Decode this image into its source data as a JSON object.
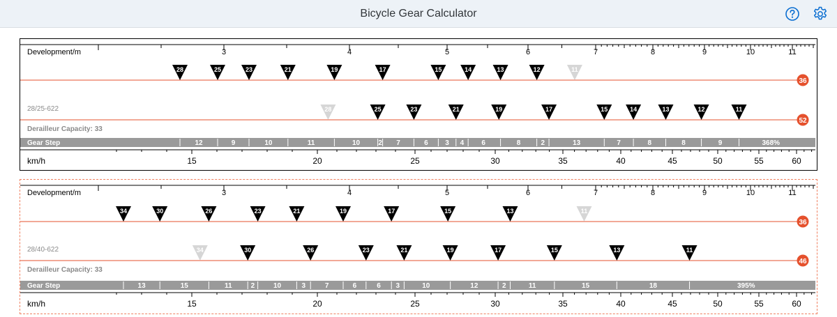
{
  "app": {
    "title": "Bicycle Gear Calculator"
  },
  "header": {
    "help_icon": "help-icon",
    "settings_icon": "settings-icon"
  },
  "colors": {
    "accent": "#e5512d",
    "line": "#e5512d",
    "gear_bar": "#9a9a9a",
    "ghost": "#d6d6d6",
    "border_dashed": "#f5b8a8"
  },
  "panels": [
    {
      "id": "panel-1",
      "dev_label": "Development/m",
      "dev_ticks": [
        "3",
        "4",
        "5",
        "6",
        "7",
        "8",
        "9",
        "10",
        "11"
      ],
      "setup_label": "28/25-622",
      "capacity_label": "Derailleur Capacity: 33",
      "gear_step_label": "Gear Step",
      "speed_label": "km/h",
      "speed_ticks": [
        "15",
        "20",
        "25",
        "30",
        "35",
        "40",
        "45",
        "50",
        "55",
        "60"
      ],
      "chainrings": [
        "36",
        "52"
      ],
      "ring1_cogs": [
        {
          "label": "28",
          "dev": 2.65,
          "ghost": false
        },
        {
          "label": "25",
          "dev": 2.95,
          "ghost": false
        },
        {
          "label": "23",
          "dev": 3.2,
          "ghost": false
        },
        {
          "label": "21",
          "dev": 3.51,
          "ghost": false
        },
        {
          "label": "19",
          "dev": 3.88,
          "ghost": false
        },
        {
          "label": "17",
          "dev": 4.34,
          "ghost": false
        },
        {
          "label": "15",
          "dev": 4.91,
          "ghost": false
        },
        {
          "label": "14",
          "dev": 5.26,
          "ghost": false
        },
        {
          "label": "13",
          "dev": 5.66,
          "ghost": false
        },
        {
          "label": "12",
          "dev": 6.13,
          "ghost": false
        },
        {
          "label": "11",
          "dev": 6.69,
          "ghost": true
        }
      ],
      "ring2_cogs": [
        {
          "label": "28",
          "dev": 3.83,
          "ghost": true
        },
        {
          "label": "25",
          "dev": 4.29,
          "ghost": false
        },
        {
          "label": "23",
          "dev": 4.66,
          "ghost": false
        },
        {
          "label": "21",
          "dev": 5.11,
          "ghost": false
        },
        {
          "label": "19",
          "dev": 5.64,
          "ghost": false
        },
        {
          "label": "17",
          "dev": 6.31,
          "ghost": false
        },
        {
          "label": "15",
          "dev": 7.15,
          "ghost": false
        },
        {
          "label": "14",
          "dev": 7.66,
          "ghost": false
        },
        {
          "label": "13",
          "dev": 8.25,
          "ghost": false
        },
        {
          "label": "12",
          "dev": 8.94,
          "ghost": false
        },
        {
          "label": "11",
          "dev": 9.75,
          "ghost": false
        }
      ],
      "gear_steps": [
        {
          "label": "12",
          "from": 2.65,
          "to": 2.95
        },
        {
          "label": "9",
          "from": 2.95,
          "to": 3.2
        },
        {
          "label": "10",
          "from": 3.2,
          "to": 3.51
        },
        {
          "label": "11",
          "from": 3.51,
          "to": 3.88
        },
        {
          "label": "10",
          "from": 3.88,
          "to": 4.29
        },
        {
          "label": "2",
          "from": 4.29,
          "to": 4.34
        },
        {
          "label": "7",
          "from": 4.34,
          "to": 4.66
        },
        {
          "label": "6",
          "from": 4.66,
          "to": 4.91
        },
        {
          "label": "3",
          "from": 4.91,
          "to": 5.11
        },
        {
          "label": "4",
          "from": 5.11,
          "to": 5.26
        },
        {
          "label": "6",
          "from": 5.26,
          "to": 5.64
        },
        {
          "label": "8",
          "from": 5.66,
          "to": 6.13
        },
        {
          "label": "2",
          "from": 6.13,
          "to": 6.31
        },
        {
          "label": "13",
          "from": 6.31,
          "to": 7.15
        },
        {
          "label": "7",
          "from": 7.15,
          "to": 7.66
        },
        {
          "label": "8",
          "from": 7.66,
          "to": 8.25
        },
        {
          "label": "8",
          "from": 8.25,
          "to": 8.94
        },
        {
          "label": "9",
          "from": 8.94,
          "to": 9.75
        },
        {
          "label": "368%",
          "from": 9.75,
          "to": 11.4
        }
      ]
    },
    {
      "id": "panel-2",
      "dev_label": "Development/m",
      "dev_ticks": [
        "3",
        "4",
        "5",
        "6",
        "7",
        "8",
        "9",
        "10",
        "11"
      ],
      "setup_label": "28/40-622",
      "capacity_label": "Derailleur Capacity: 33",
      "gear_step_label": "Gear Step",
      "speed_label": "km/h",
      "speed_ticks": [
        "15",
        "20",
        "25",
        "30",
        "35",
        "40",
        "45",
        "50",
        "55",
        "60"
      ],
      "chainrings": [
        "36",
        "46"
      ],
      "ring1_cogs": [
        {
          "label": "34",
          "dev": 2.2,
          "ghost": false
        },
        {
          "label": "30",
          "dev": 2.49,
          "ghost": false
        },
        {
          "label": "26",
          "dev": 2.88,
          "ghost": false
        },
        {
          "label": "23",
          "dev": 3.27,
          "ghost": false
        },
        {
          "label": "21",
          "dev": 3.58,
          "ghost": false
        },
        {
          "label": "19",
          "dev": 3.95,
          "ghost": false
        },
        {
          "label": "17",
          "dev": 4.43,
          "ghost": false
        },
        {
          "label": "15",
          "dev": 5.01,
          "ghost": false
        },
        {
          "label": "13",
          "dev": 5.78,
          "ghost": false
        },
        {
          "label": "11",
          "dev": 6.83,
          "ghost": true
        }
      ],
      "ring2_cogs": [
        {
          "label": "34",
          "dev": 2.81,
          "ghost": true
        },
        {
          "label": "30",
          "dev": 3.19,
          "ghost": false
        },
        {
          "label": "26",
          "dev": 3.69,
          "ghost": false
        },
        {
          "label": "23",
          "dev": 4.17,
          "ghost": false
        },
        {
          "label": "21",
          "dev": 4.56,
          "ghost": false
        },
        {
          "label": "19",
          "dev": 5.04,
          "ghost": false
        },
        {
          "label": "17",
          "dev": 5.63,
          "ghost": false
        },
        {
          "label": "15",
          "dev": 6.39,
          "ghost": false
        },
        {
          "label": "13",
          "dev": 7.37,
          "ghost": false
        },
        {
          "label": "11",
          "dev": 8.71,
          "ghost": false
        }
      ],
      "gear_steps": [
        {
          "label": "13",
          "from": 2.2,
          "to": 2.49
        },
        {
          "label": "15",
          "from": 2.49,
          "to": 2.88
        },
        {
          "label": "11",
          "from": 2.88,
          "to": 3.19
        },
        {
          "label": "2",
          "from": 3.19,
          "to": 3.27
        },
        {
          "label": "10",
          "from": 3.27,
          "to": 3.58
        },
        {
          "label": "3",
          "from": 3.58,
          "to": 3.69
        },
        {
          "label": "7",
          "from": 3.69,
          "to": 3.95
        },
        {
          "label": "6",
          "from": 3.95,
          "to": 4.17
        },
        {
          "label": "6",
          "from": 4.17,
          "to": 4.43
        },
        {
          "label": "3",
          "from": 4.43,
          "to": 4.56
        },
        {
          "label": "10",
          "from": 4.56,
          "to": 5.01
        },
        {
          "label": "12",
          "from": 5.04,
          "to": 5.63
        },
        {
          "label": "2",
          "from": 5.63,
          "to": 5.78
        },
        {
          "label": "11",
          "from": 5.78,
          "to": 6.39
        },
        {
          "label": "15",
          "from": 6.39,
          "to": 7.37
        },
        {
          "label": "18",
          "from": 7.37,
          "to": 8.71
        },
        {
          "label": "395%",
          "from": 8.71,
          "to": 11.4
        }
      ]
    }
  ]
}
